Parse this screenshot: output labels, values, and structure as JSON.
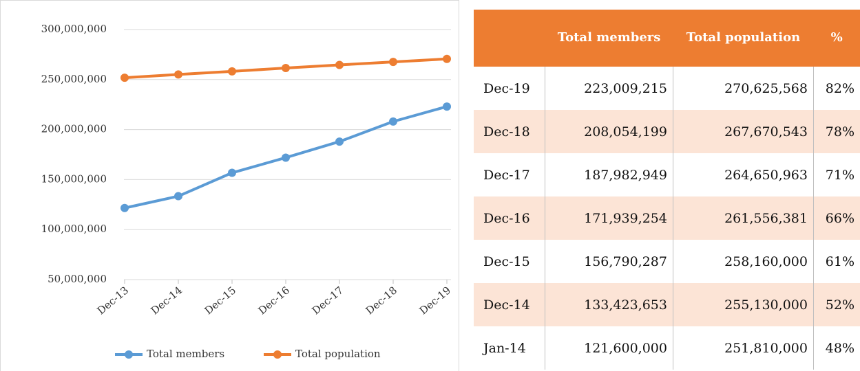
{
  "chart_data": {
    "type": "line",
    "categories": [
      "Dec-13",
      "Dec-14",
      "Dec-15",
      "Dec-16",
      "Dec-17",
      "Dec-18",
      "Dec-19"
    ],
    "series": [
      {
        "name": "Total members",
        "color": "#5b9bd5",
        "values": [
          121600000,
          133423653,
          156790287,
          171939254,
          187982949,
          208054199,
          223009215
        ]
      },
      {
        "name": "Total population",
        "color": "#ed7d31",
        "values": [
          251810000,
          255130000,
          258160000,
          261556381,
          264650963,
          267670543,
          270625568
        ]
      }
    ],
    "ylim": [
      50000000,
      300000000
    ],
    "yticks": [
      {
        "value": 50000000,
        "label": "50,000,000"
      },
      {
        "value": 100000000,
        "label": "100,000,000"
      },
      {
        "value": 150000000,
        "label": "150,000,000"
      },
      {
        "value": 200000000,
        "label": "200,000,000"
      },
      {
        "value": 250000000,
        "label": "250,000,000"
      },
      {
        "value": 300000000,
        "label": "300,000,000"
      }
    ],
    "grid": true,
    "legend": "bottom"
  },
  "table": {
    "header": [
      "",
      "Total members",
      "Total population",
      "%"
    ],
    "rows": [
      [
        "Dec-19",
        "223,009,215",
        "270,625,568",
        "82%"
      ],
      [
        "Dec-18",
        "208,054,199",
        "267,670,543",
        "78%"
      ],
      [
        "Dec-17",
        "187,982,949",
        "264,650,963",
        "71%"
      ],
      [
        "Dec-16",
        "171,939,254",
        "261,556,381",
        "66%"
      ],
      [
        "Dec-15",
        "156,790,287",
        "258,160,000",
        "61%"
      ],
      [
        "Dec-14",
        "133,423,653",
        "255,130,000",
        "52%"
      ],
      [
        "Jan-14",
        "121,600,000",
        "251,810,000",
        "48%"
      ]
    ]
  }
}
